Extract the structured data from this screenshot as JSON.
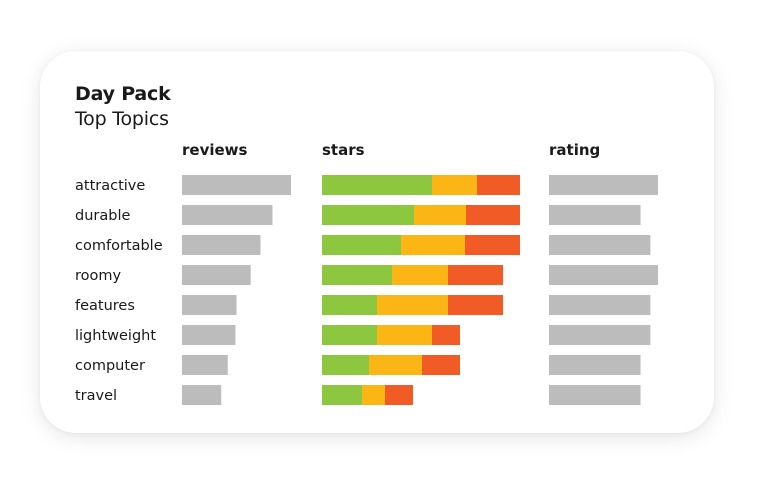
{
  "product": "Day Pack",
  "subtitle": "Top Topics",
  "columns": {
    "reviews": "reviews",
    "stars": "stars",
    "rating": "rating"
  },
  "colors": {
    "bar_gray": "#bdbcbc",
    "star_high": "#8dc63f",
    "star_mid": "#fbb615",
    "star_low": "#f15b25"
  },
  "chart_data": {
    "type": "bar",
    "title": "Day Pack",
    "subtitle": "Top Topics",
    "categories": [
      "attractive",
      "durable",
      "comfortable",
      "roomy",
      "features",
      "lightweight",
      "computer",
      "travel"
    ],
    "reviews": [
      100,
      83,
      72,
      63,
      50,
      49,
      42,
      36
    ],
    "stars": [
      {
        "high": 110,
        "mid": 45,
        "low": 43
      },
      {
        "high": 92,
        "mid": 52,
        "low": 54
      },
      {
        "high": 79,
        "mid": 64,
        "low": 55
      },
      {
        "high": 70,
        "mid": 56,
        "low": 55
      },
      {
        "high": 55,
        "mid": 71,
        "low": 55
      },
      {
        "high": 55,
        "mid": 55,
        "low": 28
      },
      {
        "high": 47,
        "mid": 53,
        "low": 38
      },
      {
        "high": 40,
        "mid": 23,
        "low": 28
      }
    ],
    "rating": [
      100,
      84,
      93,
      100,
      93,
      93,
      84,
      84
    ]
  }
}
